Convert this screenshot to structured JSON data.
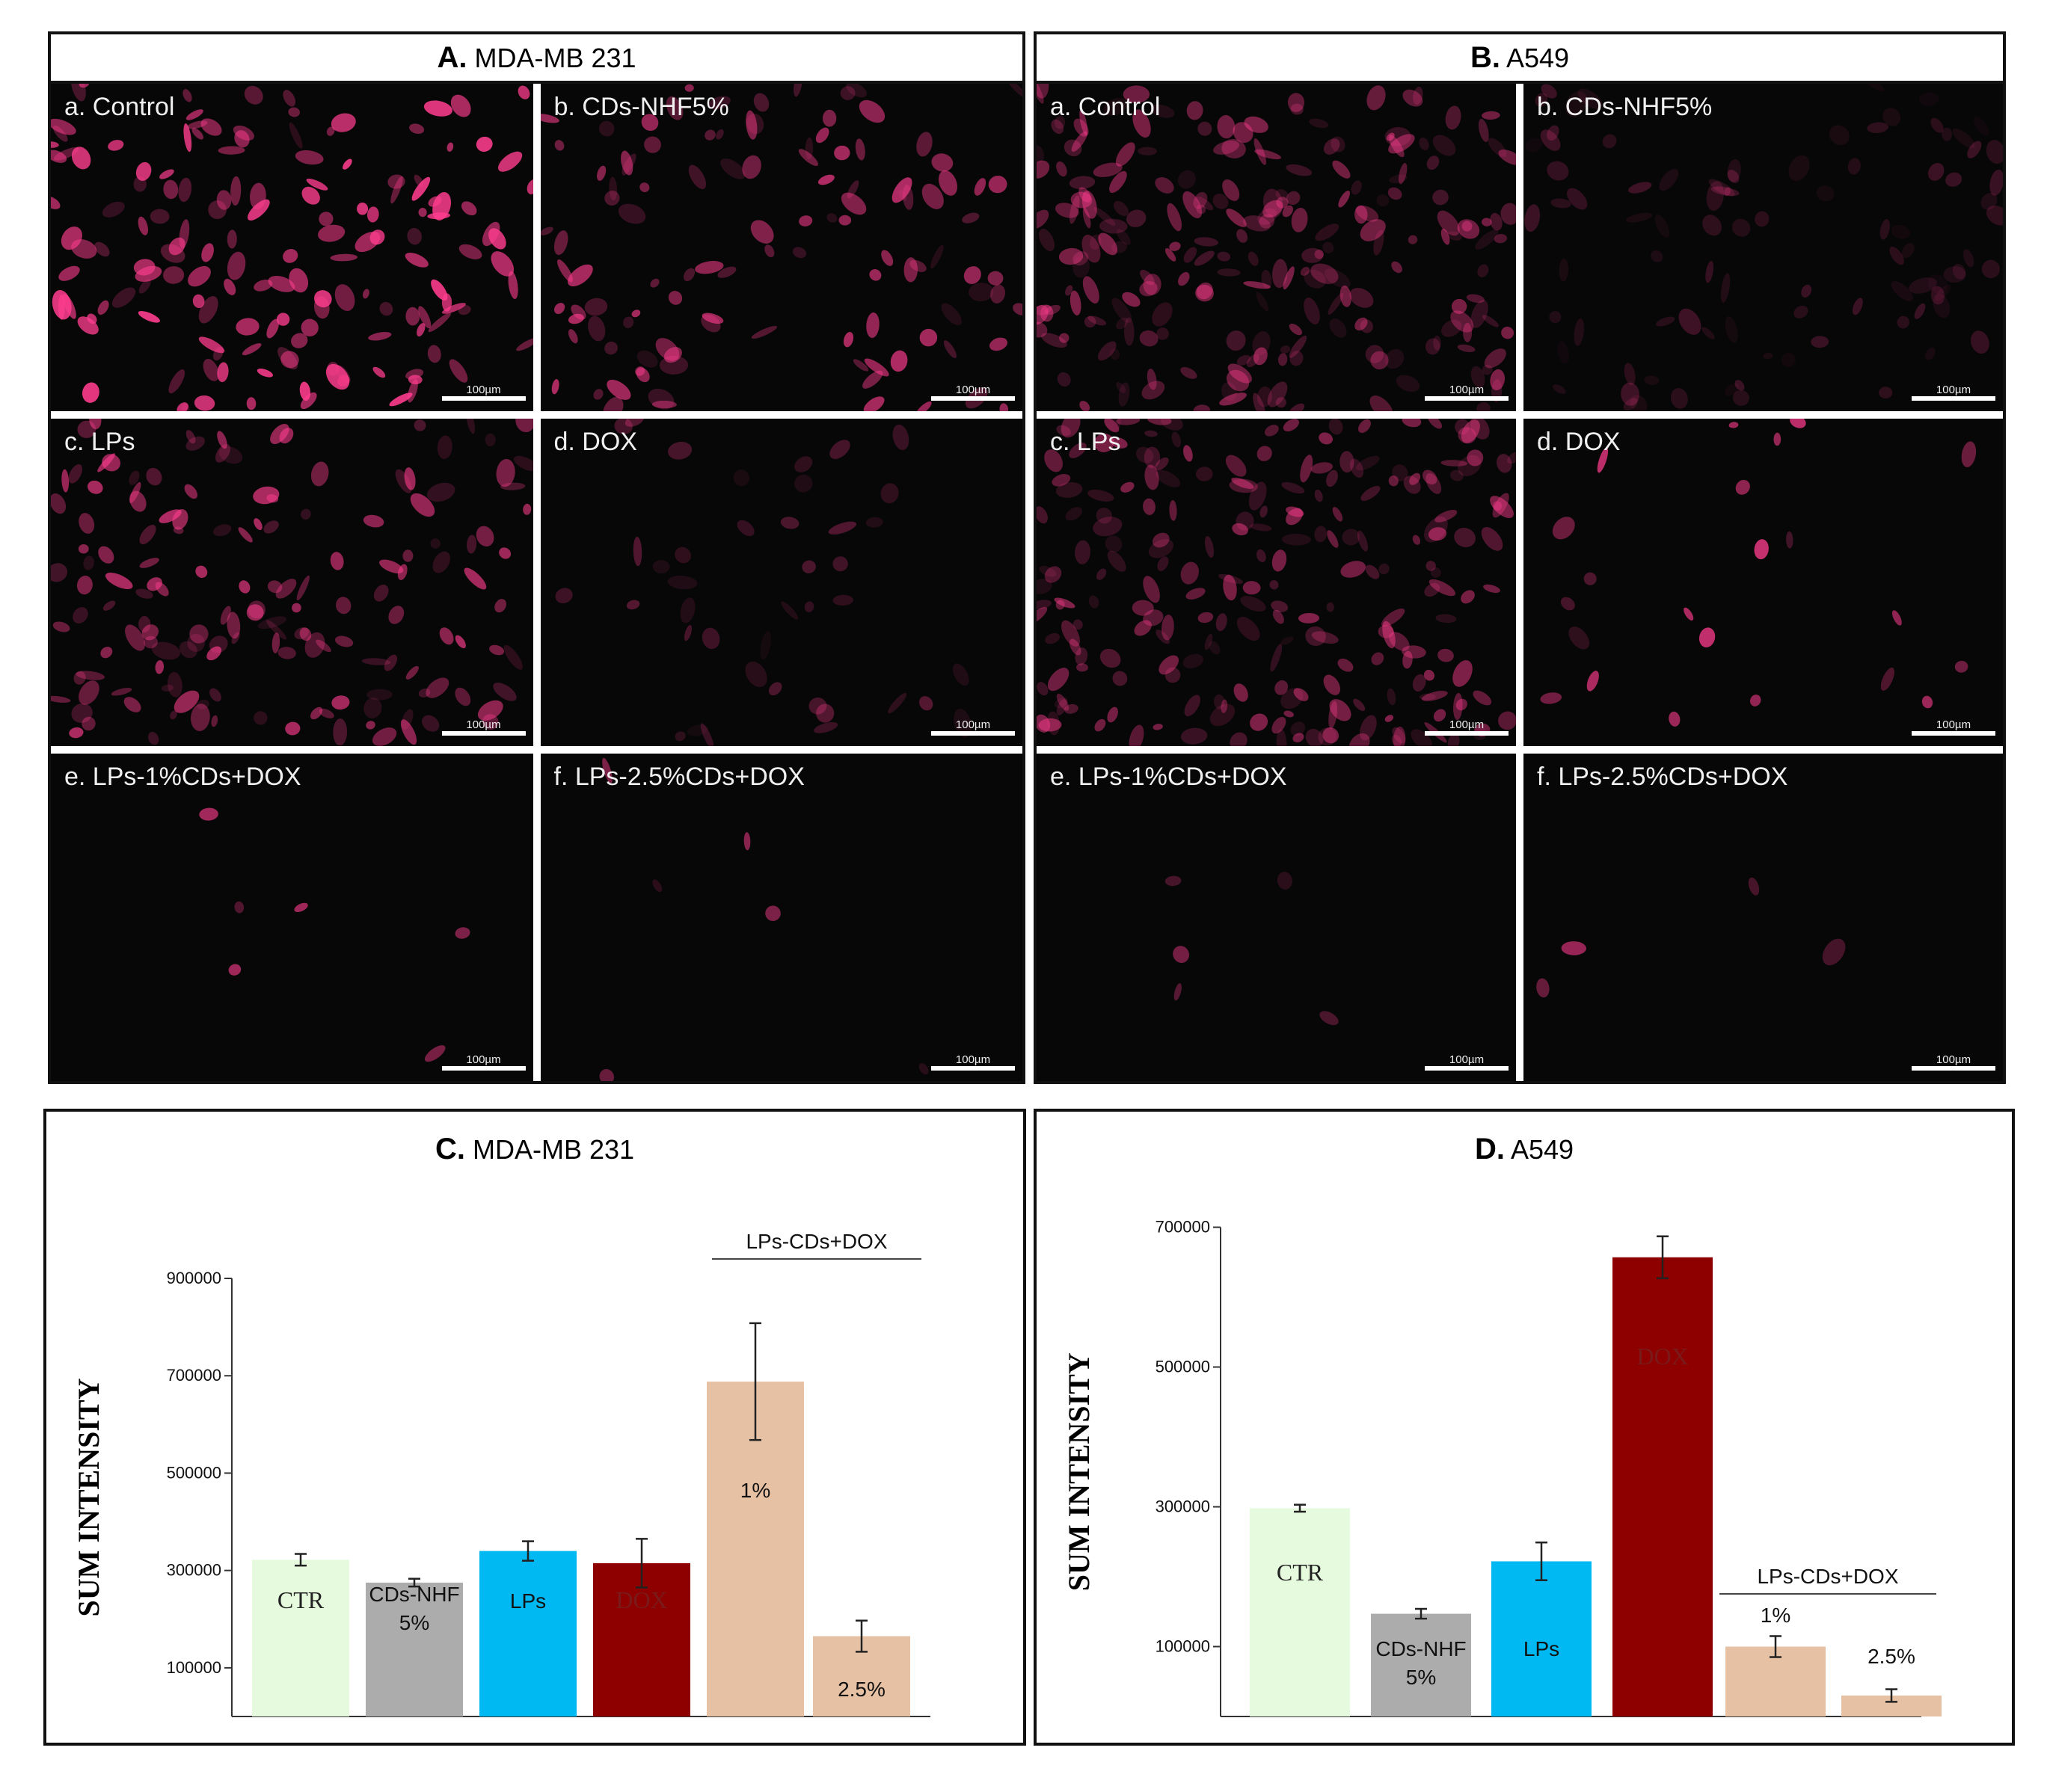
{
  "panels": {
    "A": {
      "letter": "A.",
      "name": "MDA-MB 231"
    },
    "B": {
      "letter": "B.",
      "name": "A549"
    }
  },
  "micrographs": {
    "A": [
      {
        "label": "a. Control",
        "scale": "100µm",
        "intensity": 1.0,
        "count": 150
      },
      {
        "label": "b. CDs-NHF5%",
        "scale": "100µm",
        "intensity": 0.75,
        "count": 110
      },
      {
        "label": "c. LPs",
        "scale": "100µm",
        "intensity": 0.75,
        "count": 150
      },
      {
        "label": "d. DOX",
        "scale": "100µm",
        "intensity": 0.35,
        "count": 40
      },
      {
        "label": "e. LPs-1%CDs+DOX",
        "scale": "100µm",
        "intensity": 0.8,
        "count": 6
      },
      {
        "label": "f. LPs-2.5%CDs+DOX",
        "scale": "100µm",
        "intensity": 0.6,
        "count": 6
      }
    ],
    "B": [
      {
        "label": "a. Control",
        "scale": "100µm",
        "intensity": 0.55,
        "count": 220
      },
      {
        "label": "b. CDs-NHF5%",
        "scale": "100µm",
        "intensity": 0.25,
        "count": 90
      },
      {
        "label": "c. LPs",
        "scale": "100µm",
        "intensity": 0.55,
        "count": 220
      },
      {
        "label": "d. DOX",
        "scale": "100µm",
        "intensity": 0.9,
        "count": 22
      },
      {
        "label": "e. LPs-1%CDs+DOX",
        "scale": "100µm",
        "intensity": 0.5,
        "count": 5
      },
      {
        "label": "f. LPs-2.5%CDs+DOX",
        "scale": "100µm",
        "intensity": 0.9,
        "count": 4
      }
    ]
  },
  "chart_data": [
    {
      "type": "bar",
      "panel_letter": "C.",
      "title": "MDA-MB 231",
      "ylabel": "SUM INTENSITY",
      "ylim": [
        0,
        900000
      ],
      "ticks": [
        "900000",
        "700000",
        "500000",
        "300000",
        "100000"
      ],
      "tick_values": [
        900000,
        700000,
        500000,
        300000,
        100000
      ],
      "categories": [
        "CTR",
        "CDs-NHF 5%",
        "LPs",
        "DOX",
        "1%",
        "2.5%"
      ],
      "bar_labels": [
        [
          "CTR"
        ],
        [
          "CDs-NHF",
          "5%"
        ],
        [
          "LPs"
        ],
        [
          "DOX"
        ],
        [
          "1%"
        ],
        [
          "2.5%"
        ]
      ],
      "values": [
        322000,
        275000,
        340000,
        315000,
        688000,
        165000
      ],
      "errors": [
        12000,
        8000,
        20000,
        50000,
        120000,
        32000
      ],
      "colors": [
        "#e6fade",
        "#acacac",
        "#00b9f2",
        "#8e0000",
        "#e7c1a4",
        "#e7c1a4"
      ],
      "label_colors": [
        "#222222",
        "#111111",
        "#111111",
        "#7a1a1a",
        "#111111",
        "#111111"
      ],
      "group_label": "LPs-CDs+DOX"
    },
    {
      "type": "bar",
      "panel_letter": "D.",
      "title": "A549",
      "ylabel": "SUM INTENSITY",
      "ylim": [
        0,
        700000
      ],
      "ticks": [
        "700000",
        "500000",
        "300000",
        "100000"
      ],
      "tick_values": [
        700000,
        500000,
        300000,
        100000
      ],
      "categories": [
        "CTR",
        "CDs-NHF 5%",
        "LPs",
        "DOX",
        "1%",
        "2.5%"
      ],
      "bar_labels": [
        [
          "CTR"
        ],
        [
          "CDs-NHF",
          "5%"
        ],
        [
          "LPs"
        ],
        [
          "DOX"
        ],
        [
          "1%"
        ],
        [
          "2.5%"
        ]
      ],
      "values": [
        298000,
        147000,
        222000,
        657000,
        100000,
        30000
      ],
      "errors": [
        5000,
        7000,
        27000,
        30000,
        15000,
        9000
      ],
      "colors": [
        "#e6fade",
        "#acacac",
        "#00b9f2",
        "#8e0000",
        "#e7c1a4",
        "#e7c1a4"
      ],
      "label_colors": [
        "#222222",
        "#111111",
        "#111111",
        "#7a1a1a",
        "#111111",
        "#111111"
      ],
      "group_label": "LPs-CDs+DOX"
    }
  ]
}
